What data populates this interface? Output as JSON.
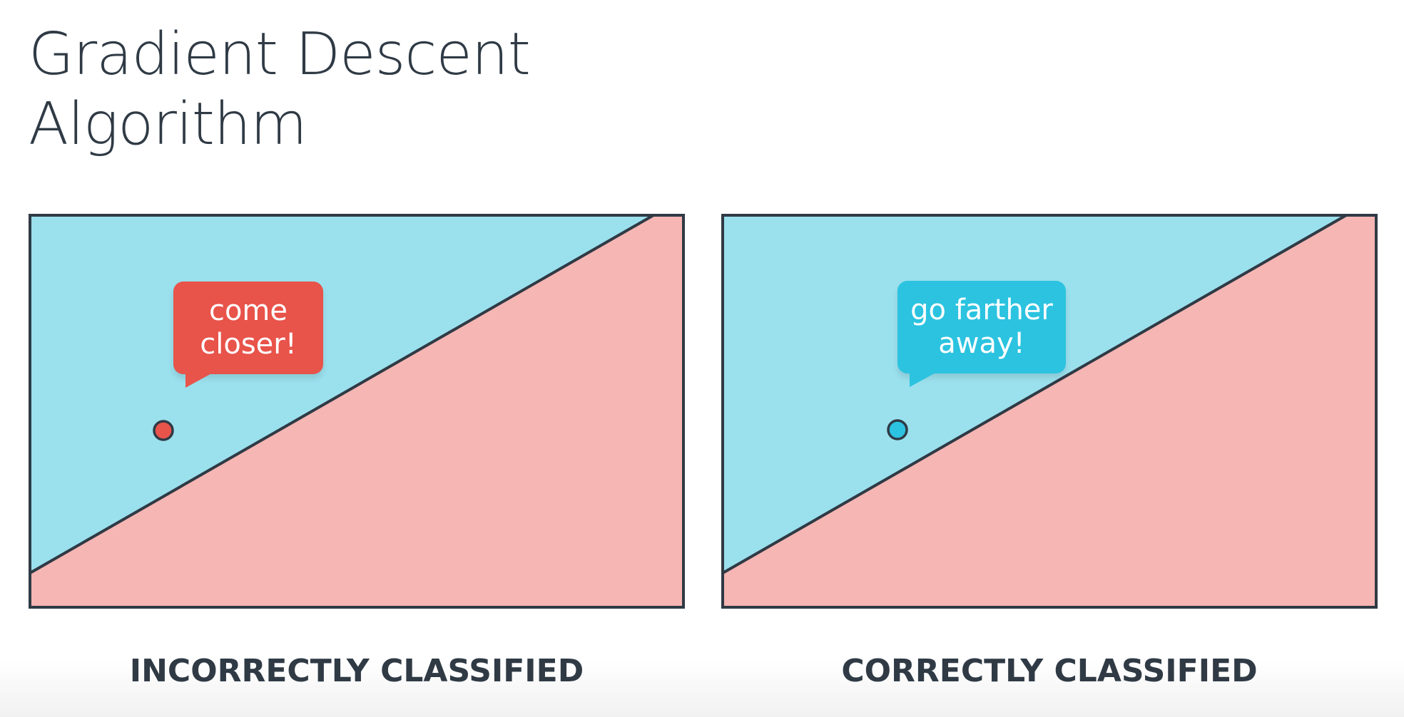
{
  "title": {
    "line1": "Gradient Descent",
    "line2": "Algorithm"
  },
  "colors": {
    "blue_region": "#9be0ed",
    "red_region": "#f6b6b3",
    "border": "#2f3a45",
    "red_point": "#e8534a",
    "blue_point": "#2bc3e0",
    "red_bubble": "#e8534a",
    "blue_bubble": "#2bc3e0"
  },
  "panels": [
    {
      "caption": "INCORRECTLY CLASSIFIED",
      "bubble": {
        "line1": "come",
        "line2": "closer!"
      },
      "point_color": "red"
    },
    {
      "caption": "CORRECTLY CLASSIFIED",
      "bubble": {
        "line1": "go farther",
        "line2": "away!"
      },
      "point_color": "blue"
    }
  ]
}
